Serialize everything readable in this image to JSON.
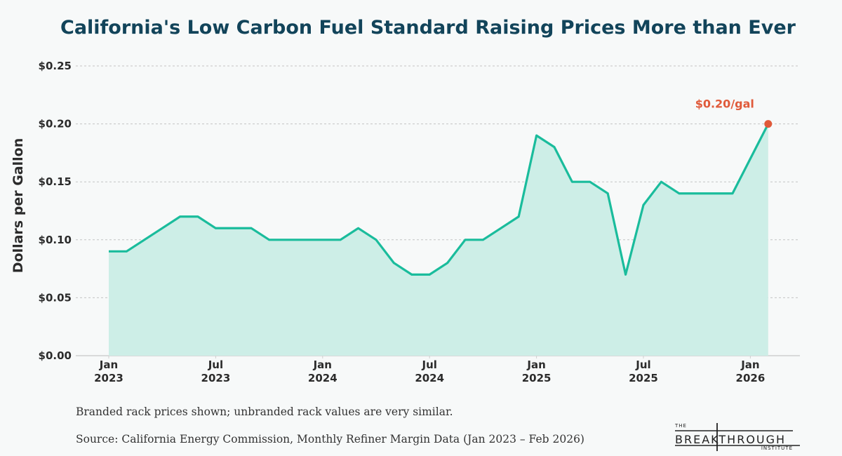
{
  "chart_data": {
    "type": "area",
    "title": "California's Low Carbon Fuel Standard Raising Prices More than Ever",
    "ylabel": "Dollars per Gallon",
    "xlabel": "",
    "ylim": [
      0,
      0.25
    ],
    "yticks": [
      0.0,
      0.05,
      0.1,
      0.15,
      0.2,
      0.25
    ],
    "ytick_labels": [
      "$0.00",
      "$0.05",
      "$0.10",
      "$0.15",
      "$0.20",
      "$0.25"
    ],
    "xticks": [
      {
        "month_index": 0,
        "line1": "Jan",
        "line2": "2023"
      },
      {
        "month_index": 6,
        "line1": "Jul",
        "line2": "2023"
      },
      {
        "month_index": 12,
        "line1": "Jan",
        "line2": "2024"
      },
      {
        "month_index": 18,
        "line1": "Jul",
        "line2": "2024"
      },
      {
        "month_index": 24,
        "line1": "Jan",
        "line2": "2025"
      },
      {
        "month_index": 30,
        "line1": "Jul",
        "line2": "2025"
      },
      {
        "month_index": 36,
        "line1": "Jan",
        "line2": "2026"
      }
    ],
    "x": [
      "2023-01",
      "2023-02",
      "2023-03",
      "2023-04",
      "2023-05",
      "2023-06",
      "2023-07",
      "2023-08",
      "2023-09",
      "2023-10",
      "2023-11",
      "2023-12",
      "2024-01",
      "2024-02",
      "2024-03",
      "2024-04",
      "2024-05",
      "2024-06",
      "2024-07",
      "2024-08",
      "2024-09",
      "2024-10",
      "2024-11",
      "2024-12",
      "2025-01",
      "2025-02",
      "2025-03",
      "2025-04",
      "2025-05",
      "2025-06",
      "2025-07",
      "2025-08",
      "2025-09",
      "2025-10",
      "2025-11",
      "2025-12",
      "2026-01",
      "2026-02"
    ],
    "series": [
      {
        "values": [
          0.09,
          0.09,
          0.1,
          0.11,
          0.12,
          0.12,
          0.11,
          0.11,
          0.11,
          0.1,
          0.1,
          0.1,
          0.1,
          0.1,
          0.11,
          0.1,
          0.08,
          0.07,
          0.07,
          0.08,
          0.1,
          0.1,
          0.11,
          0.12,
          0.19,
          0.18,
          0.15,
          0.15,
          0.14,
          0.07,
          0.13,
          0.15,
          0.14,
          0.14,
          0.14,
          0.14,
          0.17,
          0.2
        ],
        "color": "#1abc9c",
        "fill": "#cdeee7"
      }
    ],
    "annotation": {
      "text": "$0.20/gal",
      "x": "2026-02",
      "y": 0.2,
      "color": "#e05a3a"
    },
    "grid": true,
    "grid_style": "dashed-horizontal"
  },
  "notes": {
    "note1": "Branded rack prices shown; unbranded rack values are very similar.",
    "source": "Source: California Energy Commission, Monthly Refiner Margin Data (Jan 2023 – Feb 2026)"
  },
  "logo": {
    "small": "THE",
    "main": "BREAKTHROUGH",
    "sub": "INSTITUTE"
  }
}
